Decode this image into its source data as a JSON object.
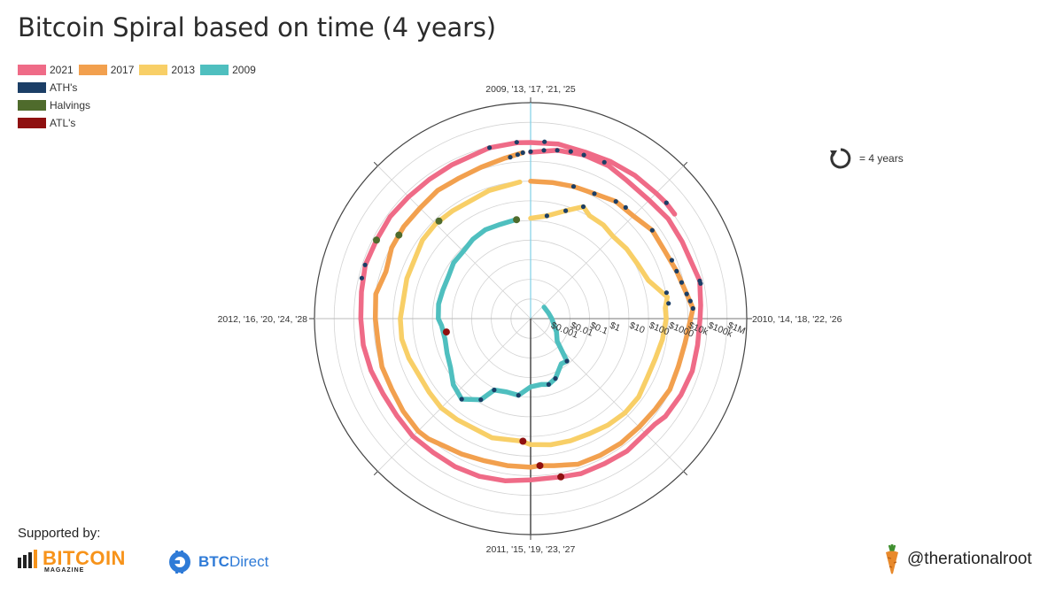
{
  "page": {
    "title": "Bitcoin Spiral based on time (4 years)",
    "supported_by": "Supported by:",
    "sponsor1": {
      "name": "BITCOIN",
      "sub": "MAGAZINE",
      "icon": "bitcoin-magazine-bars-icon"
    },
    "sponsor2": {
      "name_bold": "BTC",
      "name_rest": "Direct",
      "icon": "btcdirect-coin-icon"
    },
    "handle": "@therationalroot",
    "handle_icon": "carrot-icon",
    "period_note": "= 4 years",
    "period_icon": "circular-arrow-icon"
  },
  "chart_data": {
    "type": "polar-spiral",
    "title": "Bitcoin Spiral based on time (4 years)",
    "angular_axis": {
      "period_years": 4,
      "direction": "clockwise",
      "zero_at": "top",
      "labels": [
        {
          "angle_deg": 0,
          "text": "2009, '13, '17, '21, '25"
        },
        {
          "angle_deg": 90,
          "text": "2010, '14, '18, '22, '26"
        },
        {
          "angle_deg": 180,
          "text": "2011, '15, '19, '23, '27"
        },
        {
          "angle_deg": 270,
          "text": "2012, '16, '20, '24, '28"
        }
      ]
    },
    "radial_axis": {
      "scale": "log",
      "unit": "USD",
      "range": [
        0.0001,
        10000000
      ],
      "ticks": [
        {
          "value": 0.001,
          "label": "$0.001"
        },
        {
          "value": 0.01,
          "label": "$0.01"
        },
        {
          "value": 0.1,
          "label": "$0.1"
        },
        {
          "value": 1,
          "label": "$1"
        },
        {
          "value": 10,
          "label": "$10"
        },
        {
          "value": 100,
          "label": "$100"
        },
        {
          "value": 1000,
          "label": "$1000"
        },
        {
          "value": 10000,
          "label": "$10k"
        },
        {
          "value": 100000,
          "label": "$100k"
        },
        {
          "value": 1000000,
          "label": "$1M"
        }
      ]
    },
    "legend": [
      {
        "name": "2021",
        "color": "#ef6b87"
      },
      {
        "name": "2017",
        "color": "#f2a04e"
      },
      {
        "name": "2013",
        "color": "#f8cf67"
      },
      {
        "name": "2009",
        "color": "#4fbfbf"
      },
      {
        "name": "ATH's",
        "color": "#1b3e66"
      },
      {
        "name": "Halvings",
        "color": "#4f6b2c"
      },
      {
        "name": "ATL's",
        "color": "#8f1010"
      }
    ],
    "series": [
      {
        "name": "2009",
        "color": "#4fbfbf",
        "points": [
          [
            2009.55,
            0.0008
          ],
          [
            2009.8,
            0.0009
          ],
          [
            2010.0,
            0.0012
          ],
          [
            2010.3,
            0.003
          ],
          [
            2010.45,
            0.006
          ],
          [
            2010.55,
            0.07
          ],
          [
            2010.62,
            0.06
          ],
          [
            2010.75,
            0.2
          ],
          [
            2010.83,
            0.3
          ],
          [
            2010.9,
            0.25
          ],
          [
            2011.0,
            0.3
          ],
          [
            2011.1,
            0.9
          ],
          [
            2011.2,
            0.85
          ],
          [
            2011.3,
            1.2
          ],
          [
            2011.35,
            7
          ],
          [
            2011.45,
            25
          ],
          [
            2011.55,
            15
          ],
          [
            2011.65,
            6
          ],
          [
            2011.75,
            4
          ],
          [
            2011.85,
            3
          ],
          [
            2011.95,
            3.5
          ],
          [
            2012.0,
            5
          ],
          [
            2012.1,
            5.5
          ],
          [
            2012.2,
            5
          ],
          [
            2012.3,
            5
          ],
          [
            2012.4,
            7
          ],
          [
            2012.5,
            7
          ],
          [
            2012.6,
            10
          ],
          [
            2012.7,
            12
          ],
          [
            2012.8,
            11
          ],
          [
            2012.9,
            12.3
          ]
        ]
      },
      {
        "name": "2013",
        "color": "#f8cf67",
        "points": [
          [
            2013.0,
            13
          ],
          [
            2013.1,
            20
          ],
          [
            2013.2,
            60
          ],
          [
            2013.28,
            200
          ],
          [
            2013.33,
            110
          ],
          [
            2013.42,
            110
          ],
          [
            2013.5,
            85
          ],
          [
            2013.6,
            110
          ],
          [
            2013.7,
            130
          ],
          [
            2013.8,
            200
          ],
          [
            2013.9,
            1100
          ],
          [
            2013.95,
            750
          ],
          [
            2014.0,
            800
          ],
          [
            2014.1,
            620
          ],
          [
            2014.2,
            460
          ],
          [
            2014.3,
            450
          ],
          [
            2014.4,
            620
          ],
          [
            2014.5,
            620
          ],
          [
            2014.6,
            500
          ],
          [
            2014.7,
            380
          ],
          [
            2014.8,
            350
          ],
          [
            2014.9,
            320
          ],
          [
            2015.0,
            260
          ],
          [
            2015.05,
            180
          ],
          [
            2015.2,
            240
          ],
          [
            2015.4,
            230
          ],
          [
            2015.5,
            270
          ],
          [
            2015.6,
            240
          ],
          [
            2015.8,
            330
          ],
          [
            2015.9,
            440
          ],
          [
            2016.0,
            430
          ],
          [
            2016.2,
            420
          ],
          [
            2016.4,
            640
          ],
          [
            2016.5,
            680
          ],
          [
            2016.6,
            600
          ],
          [
            2016.8,
            720
          ],
          [
            2016.95,
            960
          ]
        ]
      },
      {
        "name": "2017",
        "color": "#f2a04e",
        "points": [
          [
            2017.0,
            1000
          ],
          [
            2017.1,
            1050
          ],
          [
            2017.2,
            1200
          ],
          [
            2017.3,
            1400
          ],
          [
            2017.4,
            2400
          ],
          [
            2017.5,
            2500
          ],
          [
            2017.6,
            4500
          ],
          [
            2017.7,
            4400
          ],
          [
            2017.8,
            6500
          ],
          [
            2017.9,
            11000
          ],
          [
            2017.96,
            19000
          ],
          [
            2018.0,
            14000
          ],
          [
            2018.1,
            9000
          ],
          [
            2018.2,
            8000
          ],
          [
            2018.3,
            9000
          ],
          [
            2018.4,
            7000
          ],
          [
            2018.5,
            6500
          ],
          [
            2018.6,
            6800
          ],
          [
            2018.7,
            6500
          ],
          [
            2018.8,
            6300
          ],
          [
            2018.9,
            3800
          ],
          [
            2018.96,
            3200
          ],
          [
            2019.0,
            3700
          ],
          [
            2019.1,
            3800
          ],
          [
            2019.2,
            4100
          ],
          [
            2019.3,
            5500
          ],
          [
            2019.45,
            11000
          ],
          [
            2019.5,
            12500
          ],
          [
            2019.6,
            10500
          ],
          [
            2019.7,
            8500
          ],
          [
            2019.8,
            9000
          ],
          [
            2019.9,
            7200
          ],
          [
            2020.0,
            8000
          ],
          [
            2020.1,
            9500
          ],
          [
            2020.2,
            5500
          ],
          [
            2020.3,
            8700
          ],
          [
            2020.4,
            9500
          ],
          [
            2020.5,
            9200
          ],
          [
            2020.6,
            11500
          ],
          [
            2020.7,
            10700
          ],
          [
            2020.8,
            13000
          ],
          [
            2020.9,
            19000
          ],
          [
            2020.97,
            29000
          ]
        ]
      },
      {
        "name": "2021",
        "color": "#ef6b87",
        "points": [
          [
            2021.0,
            30000
          ],
          [
            2021.1,
            48000
          ],
          [
            2021.2,
            58000
          ],
          [
            2021.3,
            55000
          ],
          [
            2021.38,
            38000
          ],
          [
            2021.5,
            34000
          ],
          [
            2021.6,
            45000
          ],
          [
            2021.7,
            45000
          ],
          [
            2021.86,
            66000
          ],
          [
            2021.95,
            48000
          ],
          [
            2022.0,
            42000
          ],
          [
            2022.1,
            40000
          ],
          [
            2022.2,
            45000
          ],
          [
            2022.3,
            38000
          ],
          [
            2022.4,
            30000
          ],
          [
            2022.45,
            20000
          ],
          [
            2022.6,
            22000
          ],
          [
            2022.7,
            19500
          ],
          [
            2022.8,
            20000
          ],
          [
            2022.88,
            16000
          ],
          [
            2023.0,
            16500
          ],
          [
            2023.1,
            23000
          ],
          [
            2023.2,
            28000
          ],
          [
            2023.3,
            29000
          ],
          [
            2023.4,
            27000
          ],
          [
            2023.5,
            30000
          ],
          [
            2023.6,
            26000
          ],
          [
            2023.7,
            27000
          ],
          [
            2023.8,
            35000
          ],
          [
            2023.9,
            42000
          ],
          [
            2024.0,
            44000
          ],
          [
            2024.1,
            52000
          ],
          [
            2024.2,
            70000
          ],
          [
            2024.3,
            64000
          ],
          [
            2024.4,
            69000
          ],
          [
            2024.5,
            60000
          ],
          [
            2024.6,
            58000
          ],
          [
            2024.7,
            63000
          ],
          [
            2024.85,
            90000
          ],
          [
            2024.95,
            97000
          ],
          [
            2025.0,
            94000
          ],
          [
            2025.1,
            100000
          ],
          [
            2025.2,
            84000
          ],
          [
            2025.3,
            95000
          ],
          [
            2025.4,
            105000
          ],
          [
            2025.5,
            108000
          ],
          [
            2025.55,
            118000
          ],
          [
            2025.6,
            115000
          ]
        ]
      }
    ],
    "markers": {
      "halvings": [
        [
          2012.91,
          12.3
        ],
        [
          2016.52,
          650
        ],
        [
          2020.36,
          8700
        ],
        [
          2024.3,
          64000
        ]
      ],
      "atls": [
        [
          2011.9,
          2.2
        ],
        [
          2015.04,
          180
        ],
        [
          2018.96,
          3200
        ],
        [
          2022.88,
          16000
        ]
      ],
      "aths": [
        [
          2010.55,
          0.07
        ],
        [
          2010.75,
          0.2
        ],
        [
          2010.83,
          0.3
        ],
        [
          2011.1,
          0.9
        ],
        [
          2011.3,
          1.2
        ],
        [
          2011.35,
          7
        ],
        [
          2011.45,
          25
        ],
        [
          2013.1,
          20
        ],
        [
          2013.2,
          60
        ],
        [
          2013.28,
          200
        ],
        [
          2013.88,
          1100
        ],
        [
          2013.93,
          1150
        ],
        [
          2017.2,
          1200
        ],
        [
          2017.3,
          1400
        ],
        [
          2017.4,
          2400
        ],
        [
          2017.45,
          2800
        ],
        [
          2017.6,
          4500
        ],
        [
          2017.75,
          6000
        ],
        [
          2017.8,
          6500
        ],
        [
          2017.85,
          8000
        ],
        [
          2017.9,
          11000
        ],
        [
          2017.93,
          15000
        ],
        [
          2017.96,
          19000
        ],
        [
          2020.92,
          19500
        ],
        [
          2020.95,
          24000
        ],
        [
          2020.97,
          29000
        ],
        [
          2021.0,
          32000
        ],
        [
          2021.05,
          40000
        ],
        [
          2021.1,
          48000
        ],
        [
          2021.15,
          57000
        ],
        [
          2021.2,
          58000
        ],
        [
          2021.28,
          64000
        ],
        [
          2021.86,
          66000
        ],
        [
          2021.87,
          68000
        ],
        [
          2024.15,
          69000
        ],
        [
          2024.2,
          72000
        ],
        [
          2024.85,
          90000
        ],
        [
          2024.95,
          103000
        ],
        [
          2025.05,
          108000
        ],
        [
          2025.55,
          122000
        ]
      ]
    }
  }
}
